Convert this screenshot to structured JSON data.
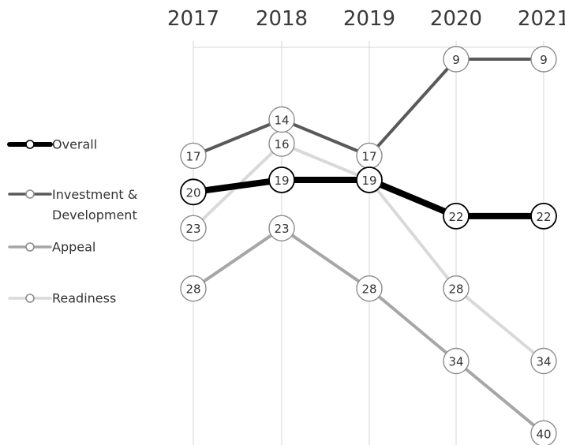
{
  "chart_data": {
    "type": "line",
    "categories": [
      "2017",
      "2018",
      "2019",
      "2020",
      "2021"
    ],
    "y_axis": {
      "reversed": true,
      "min": 8,
      "max": 40
    },
    "grid": "vertical",
    "legend_position": "left",
    "series": [
      {
        "name": "Overall",
        "values": [
          20,
          19,
          19,
          22,
          22
        ],
        "color": "#000000"
      },
      {
        "name": "Investment & Development",
        "values": [
          17,
          14,
          17,
          9,
          9
        ],
        "color": "#595959"
      },
      {
        "name": "Appeal",
        "values": [
          28,
          23,
          28,
          34,
          40
        ],
        "color": "#a6a6a6"
      },
      {
        "name": "Readiness",
        "values": [
          23,
          16,
          19,
          28,
          34
        ],
        "color": "#d9d9d9"
      }
    ]
  }
}
